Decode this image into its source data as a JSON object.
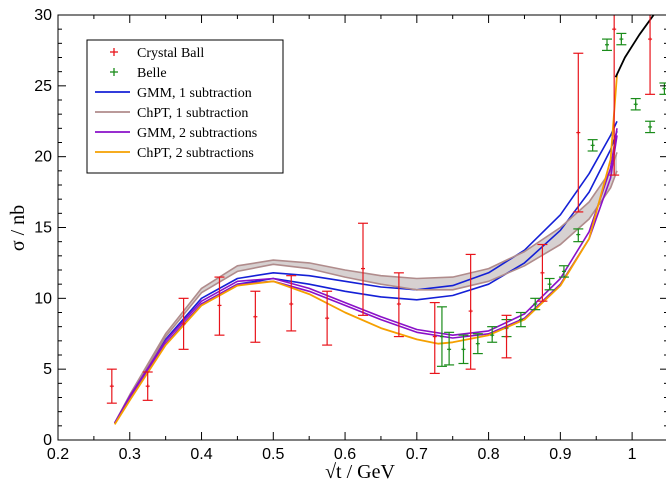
{
  "chart_data": {
    "type": "line",
    "xlabel": "√t / GeV",
    "ylabel": "σ / nb",
    "xlim": [
      0.2,
      1.05
    ],
    "ylim": [
      0,
      30
    ],
    "x_ticks": [
      "0.2",
      "0.3",
      "0.4",
      "0.5",
      "0.6",
      "0.7",
      "0.8",
      "0.9",
      "1"
    ],
    "y_ticks": [
      "0",
      "5",
      "10",
      "15",
      "20",
      "25",
      "30"
    ],
    "grid": false,
    "legend_position": "top-left",
    "legend": [
      {
        "label": "Crystal Ball",
        "kind": "marker",
        "color": "#e8141b"
      },
      {
        "label": "Belle",
        "kind": "marker",
        "color": "#1a8c1a"
      },
      {
        "label": "GMM, 1 subtraction",
        "kind": "line",
        "color": "#1420d6"
      },
      {
        "label": "ChPT, 1 subtraction",
        "kind": "line",
        "color": "#b08c8c"
      },
      {
        "label": "GMM, 2 subtractions",
        "kind": "line",
        "color": "#8a10c8"
      },
      {
        "label": "ChPT, 2 subtractions",
        "kind": "line",
        "color": "#f5a000"
      }
    ],
    "crystal_ball": [
      {
        "x": 0.275,
        "y": 3.8,
        "lo": 2.6,
        "hi": 5.0
      },
      {
        "x": 0.325,
        "y": 3.8,
        "lo": 2.8,
        "hi": 4.8
      },
      {
        "x": 0.375,
        "y": 8.2,
        "lo": 6.4,
        "hi": 10.0
      },
      {
        "x": 0.425,
        "y": 9.5,
        "lo": 7.4,
        "hi": 11.5
      },
      {
        "x": 0.475,
        "y": 8.7,
        "lo": 6.9,
        "hi": 10.5
      },
      {
        "x": 0.525,
        "y": 9.6,
        "lo": 7.7,
        "hi": 11.6
      },
      {
        "x": 0.575,
        "y": 8.6,
        "lo": 6.7,
        "hi": 10.5
      },
      {
        "x": 0.625,
        "y": 12.1,
        "lo": 8.8,
        "hi": 15.3
      },
      {
        "x": 0.675,
        "y": 9.6,
        "lo": 7.3,
        "hi": 11.8
      },
      {
        "x": 0.725,
        "y": 7.3,
        "lo": 4.7,
        "hi": 9.7
      },
      {
        "x": 0.775,
        "y": 9.1,
        "lo": 5.0,
        "hi": 13.1
      },
      {
        "x": 0.825,
        "y": 7.3,
        "lo": 5.8,
        "hi": 8.8
      },
      {
        "x": 0.875,
        "y": 11.8,
        "lo": 9.8,
        "hi": 13.8
      },
      {
        "x": 0.925,
        "y": 21.7,
        "lo": 16.1,
        "hi": 27.3
      },
      {
        "x": 0.975,
        "y": 29.0,
        "lo": 18.7,
        "hi": 30.0
      },
      {
        "x": 1.025,
        "y": 28.3,
        "lo": 24.4,
        "hi": 30.0
      }
    ],
    "belle": [
      {
        "x": 0.735,
        "y": 7.3,
        "lo": 5.2,
        "hi": 9.4
      },
      {
        "x": 0.745,
        "y": 6.4,
        "lo": 5.3,
        "hi": 7.6
      },
      {
        "x": 0.765,
        "y": 6.4,
        "lo": 5.4,
        "hi": 7.4
      },
      {
        "x": 0.785,
        "y": 6.8,
        "lo": 6.1,
        "hi": 7.5
      },
      {
        "x": 0.805,
        "y": 7.4,
        "lo": 6.9,
        "hi": 8.0
      },
      {
        "x": 0.825,
        "y": 7.9,
        "lo": 7.3,
        "hi": 8.5
      },
      {
        "x": 0.845,
        "y": 8.5,
        "lo": 8.0,
        "hi": 9.0
      },
      {
        "x": 0.865,
        "y": 9.6,
        "lo": 9.2,
        "hi": 10.0
      },
      {
        "x": 0.885,
        "y": 11.0,
        "lo": 10.6,
        "hi": 11.4
      },
      {
        "x": 0.905,
        "y": 11.9,
        "lo": 11.5,
        "hi": 12.3
      },
      {
        "x": 0.925,
        "y": 14.5,
        "lo": 14.0,
        "hi": 14.9
      },
      {
        "x": 0.945,
        "y": 20.8,
        "lo": 20.4,
        "hi": 21.2
      },
      {
        "x": 0.965,
        "y": 27.9,
        "lo": 27.5,
        "hi": 28.3
      },
      {
        "x": 0.985,
        "y": 28.3,
        "lo": 27.9,
        "hi": 28.7
      },
      {
        "x": 1.005,
        "y": 23.7,
        "lo": 23.3,
        "hi": 24.1
      },
      {
        "x": 1.025,
        "y": 22.1,
        "lo": 21.7,
        "hi": 22.5
      },
      {
        "x": 1.045,
        "y": 24.8,
        "lo": 24.4,
        "hi": 25.2
      }
    ],
    "series": [
      {
        "id": "gmm1",
        "color": "#1420d6",
        "band": true,
        "x": [
          0.279,
          0.3,
          0.35,
          0.4,
          0.45,
          0.5,
          0.55,
          0.6,
          0.65,
          0.7,
          0.75,
          0.8,
          0.85,
          0.9,
          0.94,
          0.97,
          0.979
        ],
        "lo": [
          1.2,
          3.0,
          6.8,
          9.6,
          11.0,
          11.4,
          11.0,
          10.5,
          10.1,
          9.9,
          10.2,
          11.0,
          12.5,
          14.8,
          17.5,
          20.5,
          21.8
        ],
        "hi": [
          1.2,
          3.1,
          7.1,
          10.0,
          11.4,
          11.8,
          11.6,
          11.2,
          10.8,
          10.6,
          10.9,
          11.8,
          13.4,
          15.9,
          18.8,
          21.5,
          22.5
        ]
      },
      {
        "id": "chpt1",
        "color": "#b08c8c",
        "band": true,
        "fill": "#d3cccc",
        "x": [
          0.279,
          0.3,
          0.35,
          0.4,
          0.45,
          0.5,
          0.55,
          0.6,
          0.65,
          0.7,
          0.75,
          0.8,
          0.85,
          0.9,
          0.94,
          0.97,
          0.979
        ],
        "lo": [
          1.2,
          3.1,
          7.3,
          10.4,
          11.9,
          12.4,
          12.1,
          11.5,
          11.0,
          10.6,
          10.6,
          11.2,
          12.3,
          13.8,
          15.6,
          17.8,
          19.0
        ],
        "hi": [
          1.2,
          3.2,
          7.5,
          10.7,
          12.3,
          12.7,
          12.5,
          12.0,
          11.6,
          11.4,
          11.5,
          12.1,
          13.3,
          15.0,
          16.8,
          19.0,
          20.3
        ]
      },
      {
        "id": "gmm2",
        "color": "#8a10c8",
        "band": true,
        "x": [
          0.279,
          0.3,
          0.35,
          0.4,
          0.45,
          0.5,
          0.55,
          0.6,
          0.65,
          0.7,
          0.75,
          0.8,
          0.85,
          0.9,
          0.94,
          0.97,
          0.979
        ],
        "lo": [
          1.2,
          3.0,
          6.8,
          9.6,
          11.0,
          11.2,
          10.5,
          9.5,
          8.5,
          7.6,
          7.2,
          7.5,
          8.6,
          11.0,
          14.2,
          18.5,
          21.5
        ],
        "hi": [
          1.2,
          3.1,
          7.0,
          9.8,
          11.2,
          11.4,
          10.7,
          9.7,
          8.7,
          7.8,
          7.4,
          7.7,
          8.9,
          11.4,
          14.7,
          19.2,
          22.0
        ]
      },
      {
        "id": "chpt2",
        "color": "#f5a000",
        "band": false,
        "x": [
          0.279,
          0.3,
          0.35,
          0.4,
          0.45,
          0.5,
          0.55,
          0.6,
          0.65,
          0.7,
          0.73,
          0.75,
          0.8,
          0.85,
          0.9,
          0.94,
          0.97,
          0.979
        ],
        "y": [
          1.1,
          2.8,
          6.7,
          9.5,
          10.9,
          11.2,
          10.3,
          9.0,
          7.9,
          7.1,
          6.8,
          6.9,
          7.4,
          8.5,
          10.9,
          14.2,
          19.8,
          25.8
        ]
      },
      {
        "id": "black",
        "color": "#000000",
        "band": false,
        "x": [
          0.977,
          0.99,
          1.01,
          1.03,
          1.05
        ],
        "y": [
          25.6,
          27.0,
          28.6,
          30.0,
          31.3
        ]
      }
    ]
  }
}
